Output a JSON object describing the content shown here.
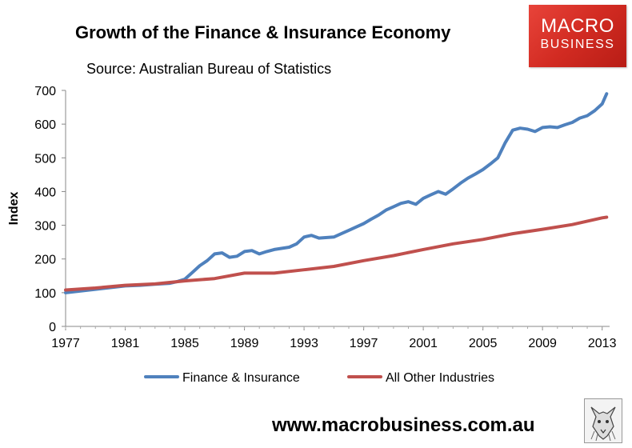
{
  "header": {
    "title": "Growth of the Finance & Insurance Economy",
    "subtitle": "Source: Australian Bureau of Statistics"
  },
  "logo": {
    "line1": "MACRO",
    "line2": "BUSINESS",
    "color": "#d22b22"
  },
  "footer": {
    "website": "www.macrobusiness.com.au",
    "mascot_icon": "wolf-sketch-icon"
  },
  "chart_data": {
    "type": "line",
    "title": "Growth of the Finance & Insurance Economy",
    "subtitle": "Source: Australian Bureau of Statistics",
    "xlabel": "",
    "ylabel": "Index",
    "xlim": [
      1977,
      2013.5
    ],
    "ylim": [
      0,
      700
    ],
    "xticks": [
      "1977",
      "1981",
      "1985",
      "1989",
      "1993",
      "1997",
      "2001",
      "2005",
      "2009",
      "2013"
    ],
    "yticks": [
      "0",
      "100",
      "200",
      "300",
      "400",
      "500",
      "600",
      "700"
    ],
    "grid": false,
    "legend": "bottom",
    "series": [
      {
        "name": "Finance & Insurance",
        "color": "#4f81bd",
        "x": [
          1977,
          1978,
          1979,
          1980,
          1981,
          1982,
          1983,
          1984,
          1984.5,
          1985,
          1985.5,
          1986,
          1986.5,
          1987,
          1987.5,
          1988,
          1988.5,
          1989,
          1989.5,
          1990,
          1990.5,
          1991,
          1992,
          1992.5,
          1993,
          1993.5,
          1994,
          1995,
          1995.5,
          1996,
          1996.5,
          1997,
          1997.5,
          1998,
          1998.5,
          1999,
          1999.5,
          2000,
          2000.5,
          2001,
          2001.5,
          2002,
          2002.5,
          2003,
          2003.5,
          2004,
          2004.5,
          2005,
          2005.5,
          2006,
          2006.5,
          2007,
          2007.5,
          2008,
          2008.5,
          2009,
          2009.5,
          2010,
          2010.5,
          2011,
          2011.5,
          2012,
          2012.5,
          2013,
          2013.3
        ],
        "values": [
          100,
          105,
          110,
          115,
          120,
          122,
          125,
          128,
          133,
          140,
          160,
          180,
          195,
          215,
          218,
          205,
          208,
          222,
          225,
          215,
          222,
          228,
          235,
          245,
          265,
          270,
          262,
          265,
          275,
          285,
          295,
          305,
          318,
          330,
          345,
          355,
          365,
          370,
          362,
          380,
          390,
          400,
          392,
          408,
          425,
          440,
          452,
          465,
          482,
          500,
          545,
          582,
          588,
          585,
          578,
          590,
          592,
          590,
          598,
          605,
          618,
          625,
          640,
          660,
          690
        ]
      },
      {
        "name": "All Other Industries",
        "color": "#c0504d",
        "x": [
          1977,
          1979,
          1981,
          1983,
          1985,
          1987,
          1989,
          1991,
          1993,
          1995,
          1997,
          1999,
          2001,
          2003,
          2005,
          2007,
          2009,
          2011,
          2013,
          2013.3
        ],
        "values": [
          108,
          114,
          122,
          126,
          135,
          142,
          158,
          158,
          168,
          178,
          195,
          210,
          228,
          245,
          258,
          275,
          288,
          302,
          322,
          324
        ]
      }
    ]
  }
}
